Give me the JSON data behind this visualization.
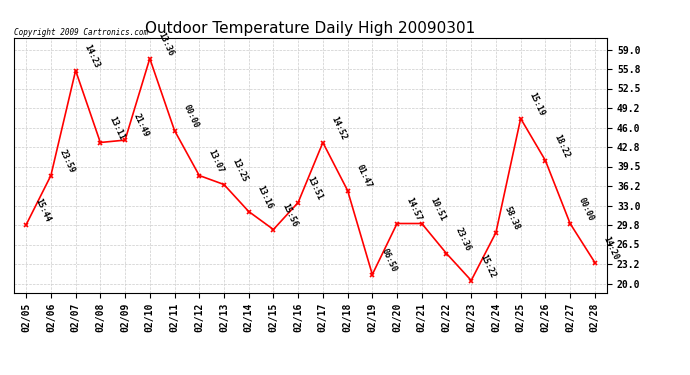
{
  "title": "Outdoor Temperature Daily High 20090301",
  "copyright": "Copyright 2009 Cartronics.com",
  "dates": [
    "02/05",
    "02/06",
    "02/07",
    "02/08",
    "02/09",
    "02/10",
    "02/11",
    "02/12",
    "02/13",
    "02/14",
    "02/15",
    "02/16",
    "02/17",
    "02/18",
    "02/19",
    "02/20",
    "02/21",
    "02/22",
    "02/23",
    "02/24",
    "02/25",
    "02/26",
    "02/27",
    "02/28"
  ],
  "values": [
    29.8,
    38.0,
    55.5,
    43.5,
    43.9,
    57.5,
    45.5,
    38.0,
    36.5,
    32.0,
    29.0,
    33.5,
    43.5,
    35.5,
    21.5,
    30.0,
    30.0,
    25.0,
    20.5,
    28.5,
    47.5,
    40.5,
    30.0,
    23.5
  ],
  "labels": [
    "15:44",
    "23:59",
    "14:23",
    "13:11",
    "21:49",
    "13:36",
    "00:00",
    "13:07",
    "13:25",
    "13:16",
    "15:56",
    "13:51",
    "14:52",
    "01:47",
    "06:50",
    "14:57",
    "10:51",
    "23:36",
    "15:22",
    "58:38",
    "15:19",
    "18:22",
    "00:00",
    "14:20"
  ],
  "line_color": "#ff0000",
  "marker_color": "#ff0000",
  "background_color": "#ffffff",
  "grid_color": "#cccccc",
  "title_fontsize": 11,
  "copyright_fontsize": 5.5,
  "tick_label_fontsize": 7,
  "annotation_fontsize": 6,
  "yticks": [
    20.0,
    23.2,
    26.5,
    29.8,
    33.0,
    36.2,
    39.5,
    42.8,
    46.0,
    49.2,
    52.5,
    55.8,
    59.0
  ],
  "ylim": [
    18.5,
    61.0
  ],
  "xlim": [
    -0.5,
    23.5
  ]
}
